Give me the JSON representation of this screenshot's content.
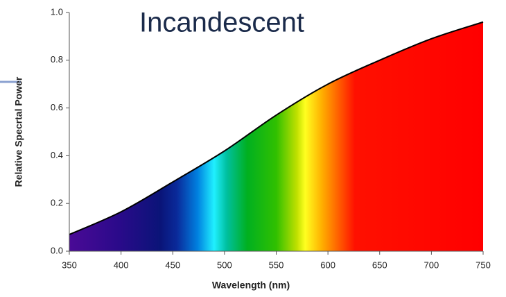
{
  "chart_data": {
    "type": "area",
    "title": "Incandescent",
    "xlabel": "Wavelength (nm)",
    "ylabel": "Relative Specrtal Power",
    "x": [
      350,
      400,
      450,
      500,
      550,
      600,
      650,
      700,
      750
    ],
    "values": [
      0.07,
      0.165,
      0.29,
      0.42,
      0.57,
      0.7,
      0.8,
      0.89,
      0.96
    ],
    "xlim": [
      350,
      750
    ],
    "xticks": [
      350,
      400,
      450,
      500,
      550,
      600,
      650,
      700,
      750
    ],
    "ylim": [
      0,
      1
    ],
    "yticks": [
      {
        "value": 0,
        "label": "0.0"
      },
      0.2,
      0.4,
      0.6,
      0.8,
      {
        "value": 1,
        "label": "1.0"
      }
    ],
    "color": "#000000"
  }
}
